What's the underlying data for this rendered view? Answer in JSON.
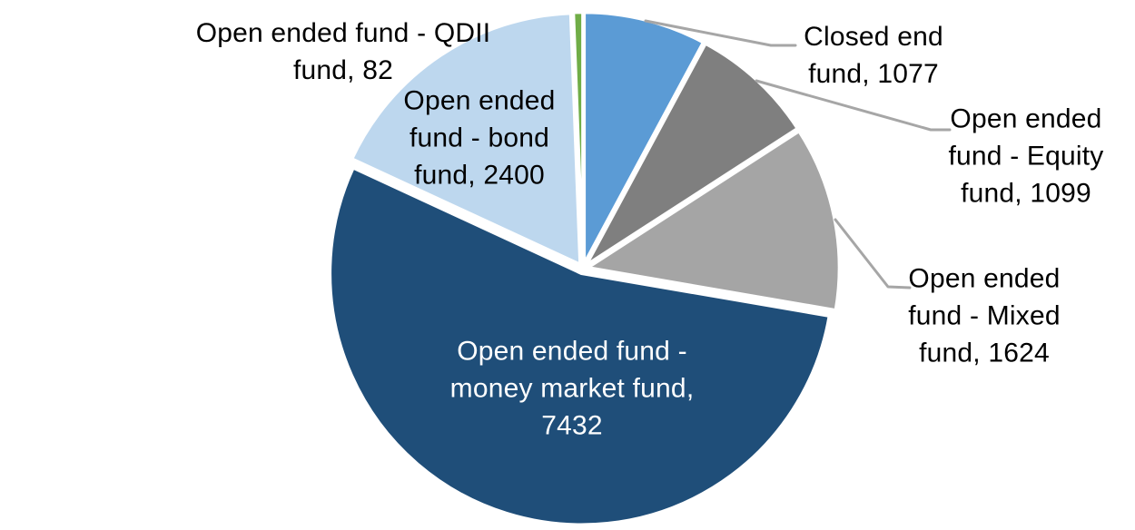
{
  "chart_data": {
    "type": "pie",
    "title": "",
    "legend": "none",
    "style": "exploded-pie-white-borders",
    "direction": "clockwise",
    "start_angle_deg": 0,
    "total": 13714,
    "label_style": "category-name-and-value",
    "leader_line_color": "#A6A6A6",
    "background_color": "#FFFFFF",
    "series": [
      {
        "id": "closed-end-fund",
        "name": "Closed end fund",
        "value": 1077,
        "color": "#5B9BD5"
      },
      {
        "id": "equity-fund",
        "name": "Open ended fund - Equity fund",
        "value": 1099,
        "color": "#7F7F7F"
      },
      {
        "id": "mixed-fund",
        "name": "Open ended fund - Mixed fund",
        "value": 1624,
        "color": "#A5A5A5"
      },
      {
        "id": "money-market-fund",
        "name": "Open ended fund - money market fund",
        "value": 7432,
        "color": "#1F4E79"
      },
      {
        "id": "bond-fund",
        "name": "Open ended fund - bond fund",
        "value": 2400,
        "color": "#BDD7EE"
      },
      {
        "id": "qdii-fund",
        "name": "Open ended fund - QDII fund",
        "value": 82,
        "color": "#70AD47"
      }
    ]
  },
  "labels": [
    {
      "id": "closed-end-fund",
      "text_color": "#000000",
      "lines": [
        "Closed end",
        "fund, 1077"
      ]
    },
    {
      "id": "equity-fund",
      "text_color": "#000000",
      "lines": [
        "Open ended",
        "fund - Equity",
        "fund, 1099"
      ]
    },
    {
      "id": "mixed-fund",
      "text_color": "#000000",
      "lines": [
        "Open ended",
        "fund - Mixed",
        "fund, 1624"
      ]
    },
    {
      "id": "qdii-fund",
      "text_color": "#000000",
      "lines": [
        "Open ended fund - QDII",
        "fund, 82"
      ]
    },
    {
      "id": "bond-fund",
      "text_color": "#000000",
      "lines": [
        "Open ended",
        "fund - bond",
        "fund, 2400"
      ]
    },
    {
      "id": "money-market-fund",
      "text_color": "#FFFFFF",
      "lines": [
        "Open ended fund -",
        "money market fund,",
        "7432"
      ]
    }
  ]
}
